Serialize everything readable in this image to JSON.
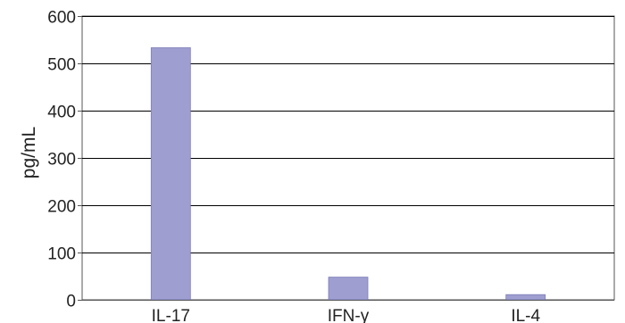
{
  "chart_data": {
    "type": "bar",
    "categories": [
      "IL-17",
      "IFN-γ",
      "IL-4"
    ],
    "values": [
      533,
      48,
      11
    ],
    "title": "",
    "xlabel": "",
    "ylabel": "pg/mL",
    "ylim": [
      0,
      600
    ],
    "yticks": [
      0,
      100,
      200,
      300,
      400,
      500,
      600
    ],
    "grid": true,
    "bar_color": "#9e9ed0",
    "bar_edge_color": "#7d7db8",
    "grid_color": "#000000",
    "axis_color": "#555555"
  }
}
